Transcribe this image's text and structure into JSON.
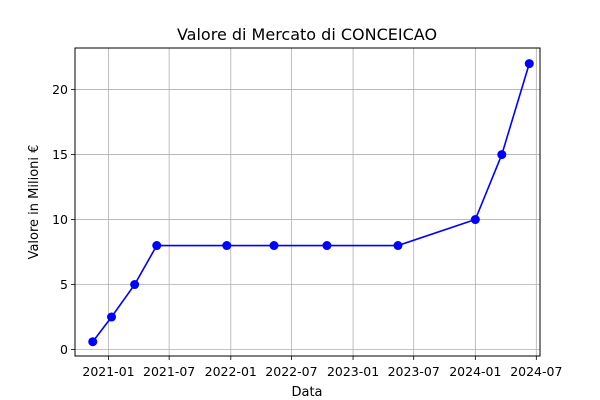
{
  "chart_data": {
    "type": "line",
    "title": "Valore di Mercato di CONCEICAO",
    "xlabel": "Data",
    "ylabel": "Valore in Milioni €",
    "x_tick_labels": [
      "2021-01",
      "2021-07",
      "2022-01",
      "2022-07",
      "2023-01",
      "2023-07",
      "2024-01",
      "2024-07"
    ],
    "y_tick_labels": [
      "0",
      "5",
      "10",
      "15",
      "20"
    ],
    "xlim": [
      "2020-09-23",
      "2024-07-12"
    ],
    "ylim": [
      -0.5,
      23.2
    ],
    "grid": true,
    "series": [
      {
        "color": "#0000ff",
        "marker": "circle",
        "points": [
          {
            "x": "2020-11-15",
            "y": 0.6
          },
          {
            "x": "2021-01-10",
            "y": 2.5
          },
          {
            "x": "2021-03-20",
            "y": 5
          },
          {
            "x": "2021-05-25",
            "y": 8
          },
          {
            "x": "2021-12-20",
            "y": 8
          },
          {
            "x": "2022-05-10",
            "y": 8
          },
          {
            "x": "2022-10-15",
            "y": 8
          },
          {
            "x": "2023-05-15",
            "y": 8
          },
          {
            "x": "2024-01-01",
            "y": 10
          },
          {
            "x": "2024-03-20",
            "y": 15
          },
          {
            "x": "2024-06-10",
            "y": 22
          }
        ]
      }
    ]
  }
}
